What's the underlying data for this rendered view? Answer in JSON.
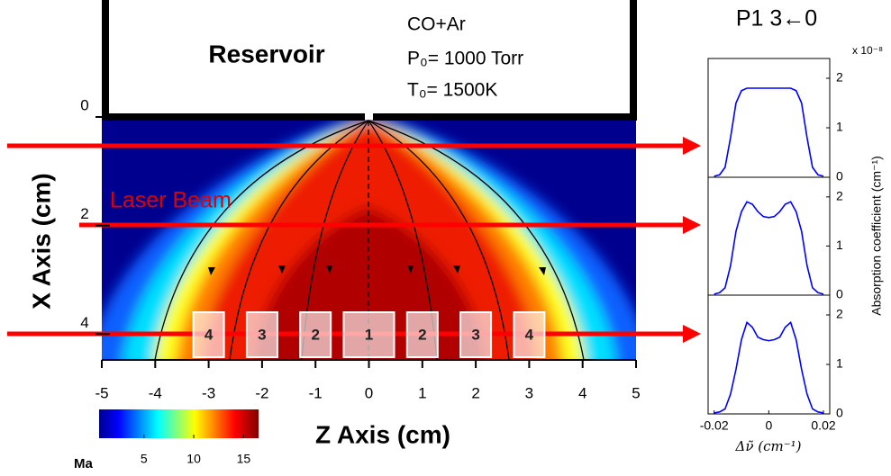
{
  "chart_data": [
    {
      "type": "heatmap",
      "xlabel": "Z Axis (cm)",
      "ylabel": "X Axis  (cm)",
      "xlim": [
        -5,
        5
      ],
      "xticks": [
        -5,
        -4,
        -3,
        -2,
        -1,
        0,
        1,
        2,
        3,
        4,
        5
      ],
      "ylim": [
        0,
        4.5
      ],
      "yticks": [
        0,
        2,
        4
      ],
      "annotations": {
        "reservoir": "Reservoir",
        "gas": "CO+Ar",
        "pressure": "P₀= 1000 Torr",
        "temperature": "T₀= 1500K",
        "beam": "Laser Beam"
      },
      "regions": [
        {
          "label": "4",
          "z": -3
        },
        {
          "label": "3",
          "z": -2
        },
        {
          "label": "2",
          "z": -1
        },
        {
          "label": "1",
          "z": 0
        },
        {
          "label": "2",
          "z": 1
        },
        {
          "label": "3",
          "z": 2
        },
        {
          "label": "4",
          "z": 3
        }
      ],
      "colorbar": {
        "label": "Ma",
        "lim": [
          0.5,
          16.5
        ],
        "ticks": [
          5,
          10,
          15
        ]
      }
    },
    {
      "type": "line",
      "title": "P1 3←0",
      "y_exponent": "x 10⁻⁸",
      "x": [
        -0.02,
        -0.018,
        -0.016,
        -0.014,
        -0.012,
        -0.01,
        -0.008,
        -0.006,
        -0.004,
        -0.002,
        0,
        0.002,
        0.004,
        0.006,
        0.008,
        0.01,
        0.012,
        0.014,
        0.016,
        0.018,
        0.02
      ],
      "series": [
        {
          "color": "#0000ff",
          "values": [
            0.02,
            0.05,
            0.2,
            0.8,
            1.5,
            1.75,
            1.8,
            1.8,
            1.8,
            1.8,
            1.8,
            1.8,
            1.8,
            1.8,
            1.8,
            1.75,
            1.5,
            0.8,
            0.2,
            0.05,
            0.02
          ]
        }
      ],
      "xlim": [
        -0.0222,
        0.0223
      ],
      "ylim": [
        0,
        2.4
      ],
      "yticks": [
        0,
        1,
        2
      ]
    },
    {
      "type": "line",
      "ylabel": "Absorption coefficient (cm⁻¹)",
      "x": [
        -0.02,
        -0.018,
        -0.016,
        -0.014,
        -0.012,
        -0.01,
        -0.008,
        -0.006,
        -0.004,
        -0.002,
        0,
        0.002,
        0.004,
        0.006,
        0.008,
        0.01,
        0.012,
        0.014,
        0.016,
        0.018,
        0.02
      ],
      "series": [
        {
          "color": "#0000ff",
          "values": [
            0.02,
            0.05,
            0.15,
            0.6,
            1.3,
            1.7,
            1.9,
            1.85,
            1.7,
            1.6,
            1.58,
            1.6,
            1.7,
            1.85,
            1.9,
            1.7,
            1.3,
            0.6,
            0.15,
            0.05,
            0.02
          ]
        }
      ],
      "xlim": [
        -0.0222,
        0.0223
      ],
      "ylim": [
        0,
        2.4
      ],
      "yticks": [
        0,
        1,
        2
      ]
    },
    {
      "type": "line",
      "xlabel": "Δν̃ (cm⁻¹)",
      "x": [
        -0.02,
        -0.018,
        -0.016,
        -0.014,
        -0.012,
        -0.01,
        -0.008,
        -0.006,
        -0.004,
        -0.002,
        0,
        0.002,
        0.004,
        0.006,
        0.008,
        0.01,
        0.012,
        0.014,
        0.016,
        0.018,
        0.02
      ],
      "series": [
        {
          "color": "#0000ff",
          "values": [
            0.02,
            0.04,
            0.1,
            0.4,
            0.9,
            1.5,
            1.85,
            1.75,
            1.55,
            1.5,
            1.48,
            1.5,
            1.55,
            1.75,
            1.85,
            1.5,
            0.9,
            0.4,
            0.1,
            0.04,
            0.02
          ]
        }
      ],
      "xlim": [
        -0.0222,
        0.0223
      ],
      "ylim": [
        0,
        2.4
      ],
      "yticks": [
        0,
        1,
        2
      ],
      "xticks": [
        -0.02,
        0,
        0.02
      ]
    }
  ]
}
